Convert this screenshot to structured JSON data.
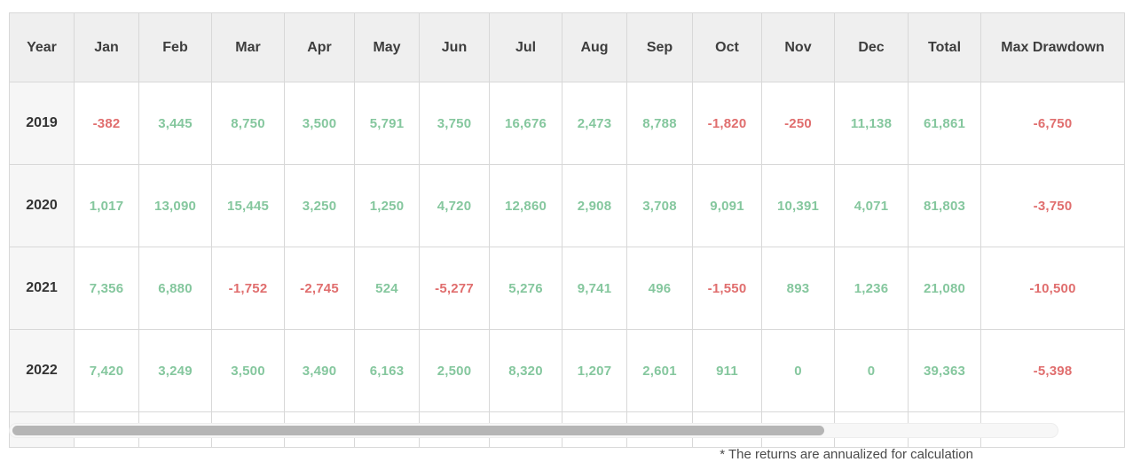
{
  "table": {
    "headers": [
      "Year",
      "Jan",
      "Feb",
      "Mar",
      "Apr",
      "May",
      "Jun",
      "Jul",
      "Aug",
      "Sep",
      "Oct",
      "Nov",
      "Dec",
      "Total",
      "Max Drawdown"
    ],
    "rows": [
      {
        "year": "2019",
        "values": [
          "-382",
          "3,445",
          "8,750",
          "3,500",
          "5,791",
          "3,750",
          "16,676",
          "2,473",
          "8,788",
          "-1,820",
          "-250",
          "11,138",
          "61,861",
          "-6,750"
        ]
      },
      {
        "year": "2020",
        "values": [
          "1,017",
          "13,090",
          "15,445",
          "3,250",
          "1,250",
          "4,720",
          "12,860",
          "2,908",
          "3,708",
          "9,091",
          "10,391",
          "4,071",
          "81,803",
          "-3,750"
        ]
      },
      {
        "year": "2021",
        "values": [
          "7,356",
          "6,880",
          "-1,752",
          "-2,745",
          "524",
          "-5,277",
          "5,276",
          "9,741",
          "496",
          "-1,550",
          "893",
          "1,236",
          "21,080",
          "-10,500"
        ]
      },
      {
        "year": "2022",
        "values": [
          "7,420",
          "3,249",
          "3,500",
          "3,490",
          "6,163",
          "2,500",
          "8,320",
          "1,207",
          "2,601",
          "911",
          "0",
          "0",
          "39,363",
          "-5,398"
        ]
      }
    ]
  },
  "footnote": "* The returns are annualized for calculation",
  "colors": {
    "positive": "#85c79e",
    "negative": "#e06e6e",
    "header_bg": "#efefef",
    "year_bg": "#f6f6f6",
    "border": "#d8d8d8",
    "scrollbar_thumb": "#b5b5b5"
  }
}
